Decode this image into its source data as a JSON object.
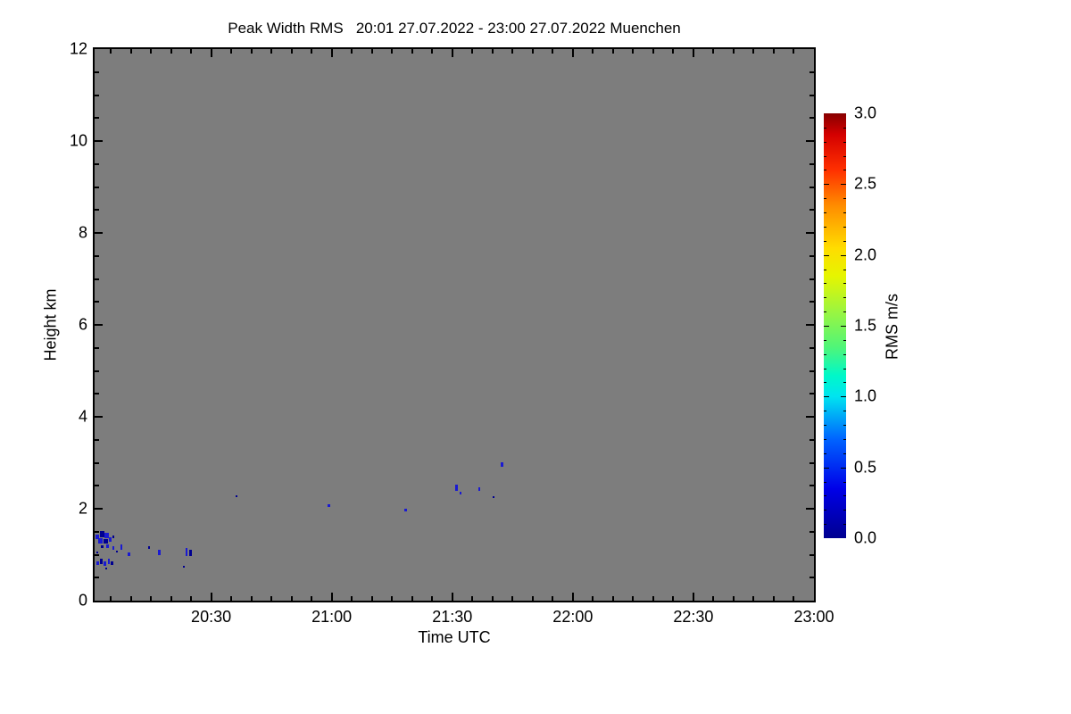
{
  "colors": {
    "plot_background": "#7d7d7d",
    "axis": "#000000",
    "figure_background": "#ffffff",
    "speck_low": "#000090",
    "speck_high": "#1a1ad2"
  },
  "chart_data": {
    "type": "heatmap",
    "title": "Peak Width RMS   20:01 27.07.2022 - 23:00 27.07.2022 Muenchen",
    "site": "Muenchen",
    "time_start": "20:01 27.07.2022",
    "time_end": "23:00 27.07.2022",
    "xlabel": "Time UTC",
    "ylabel": "Height km",
    "x_start_min": 1,
    "x_end_min": 180,
    "ylim": [
      0,
      12
    ],
    "x_axis": {
      "major_ticks": [
        {
          "t": 30,
          "label": "20:30"
        },
        {
          "t": 60,
          "label": "21:00"
        },
        {
          "t": 90,
          "label": "21:30"
        },
        {
          "t": 120,
          "label": "22:00"
        },
        {
          "t": 150,
          "label": "22:30"
        },
        {
          "t": 180,
          "label": "23:00"
        }
      ],
      "minor_step_min": 5,
      "major_every_min": 30
    },
    "y_axis": {
      "major_ticks": [
        {
          "v": 0,
          "label": "0"
        },
        {
          "v": 2,
          "label": "2"
        },
        {
          "v": 4,
          "label": "4"
        },
        {
          "v": 6,
          "label": "6"
        },
        {
          "v": 8,
          "label": "8"
        },
        {
          "v": 10,
          "label": "10"
        },
        {
          "v": 12,
          "label": "12"
        }
      ],
      "minor_step": 0.5,
      "major_every": 2
    },
    "colorbar": {
      "label": "RMS m/s",
      "min": 0.0,
      "max": 3.0,
      "tick_labels": [
        {
          "v": 0.0,
          "label": "0.0"
        },
        {
          "v": 0.5,
          "label": "0.5"
        },
        {
          "v": 1.0,
          "label": "1.0"
        },
        {
          "v": 1.5,
          "label": "1.5"
        },
        {
          "v": 2.0,
          "label": "2.0"
        },
        {
          "v": 2.5,
          "label": "2.5"
        },
        {
          "v": 3.0,
          "label": "3.0"
        }
      ],
      "minor_tick_step": 0.1,
      "major_tick_step": 0.5,
      "gradient_stops": [
        [
          0.0,
          "#000090"
        ],
        [
          0.35,
          "#0000e8"
        ],
        [
          0.7,
          "#0064ff"
        ],
        [
          1.0,
          "#00e4f0"
        ],
        [
          1.15,
          "#00f8c8"
        ],
        [
          1.35,
          "#50f578"
        ],
        [
          1.6,
          "#9bf540"
        ],
        [
          1.85,
          "#e6f500"
        ],
        [
          2.05,
          "#ffdc00"
        ],
        [
          2.35,
          "#ff8c00"
        ],
        [
          2.6,
          "#ff3000"
        ],
        [
          2.85,
          "#d40000"
        ],
        [
          3.0,
          "#870000"
        ]
      ]
    },
    "value_color_threshold": 0.2,
    "points_note": "t = minutes after 20:00 UTC, h = height km (top of spot), v = RMS m/s, dt/dh = spot extent",
    "points": [
      {
        "t": 1.2,
        "h": 1.44,
        "v": 0.35,
        "dt": 0.9,
        "dh": 0.1
      },
      {
        "t": 2.3,
        "h": 1.51,
        "v": 0.1,
        "dt": 1.1,
        "dh": 0.14
      },
      {
        "t": 3.4,
        "h": 1.48,
        "v": 0.35,
        "dt": 1.1,
        "dh": 0.12
      },
      {
        "t": 1.9,
        "h": 1.36,
        "v": 0.35,
        "dt": 1.1,
        "dh": 0.12
      },
      {
        "t": 3.2,
        "h": 1.34,
        "v": 0.1,
        "dt": 1.1,
        "dh": 0.1
      },
      {
        "t": 4.6,
        "h": 1.38,
        "v": 0.35,
        "dt": 0.67,
        "dh": 0.1
      },
      {
        "t": 2.6,
        "h": 1.2,
        "v": 0.1,
        "dt": 0.67,
        "dh": 0.06
      },
      {
        "t": 3.9,
        "h": 1.22,
        "v": 0.35,
        "dt": 0.67,
        "dh": 0.08
      },
      {
        "t": 5.4,
        "h": 1.42,
        "v": 0.1,
        "dt": 0.45,
        "dh": 0.06
      },
      {
        "t": 5.4,
        "h": 1.18,
        "v": 0.35,
        "dt": 0.45,
        "dh": 0.08
      },
      {
        "t": 7.4,
        "h": 1.22,
        "v": 0.35,
        "dt": 0.45,
        "dh": 0.12
      },
      {
        "t": 6.3,
        "h": 1.09,
        "v": 0.1,
        "dt": 0.45,
        "dh": 0.04
      },
      {
        "t": 9.2,
        "h": 1.05,
        "v": 0.35,
        "dt": 0.67,
        "dh": 0.08
      },
      {
        "t": 1.4,
        "h": 1.07,
        "v": 0.1,
        "dt": 0.45,
        "dh": 0.04
      },
      {
        "t": 1.4,
        "h": 0.85,
        "v": 0.35,
        "dt": 0.67,
        "dh": 0.08
      },
      {
        "t": 2.3,
        "h": 0.91,
        "v": 0.1,
        "dt": 0.67,
        "dh": 0.12
      },
      {
        "t": 3.2,
        "h": 0.85,
        "v": 0.35,
        "dt": 0.67,
        "dh": 0.1
      },
      {
        "t": 4.3,
        "h": 0.91,
        "v": 0.35,
        "dt": 0.45,
        "dh": 0.12
      },
      {
        "t": 5.0,
        "h": 0.85,
        "v": 0.1,
        "dt": 0.67,
        "dh": 0.08
      },
      {
        "t": 3.7,
        "h": 0.72,
        "v": 0.1,
        "dt": 0.45,
        "dh": 0.04
      },
      {
        "t": 14.3,
        "h": 1.18,
        "v": 0.1,
        "dt": 0.45,
        "dh": 0.06
      },
      {
        "t": 16.8,
        "h": 1.11,
        "v": 0.35,
        "dt": 0.67,
        "dh": 0.12
      },
      {
        "t": 23.0,
        "h": 0.76,
        "v": 0.1,
        "dt": 0.45,
        "dh": 0.04
      },
      {
        "t": 23.7,
        "h": 1.15,
        "v": 0.35,
        "dt": 0.45,
        "dh": 0.17
      },
      {
        "t": 24.5,
        "h": 1.11,
        "v": 0.1,
        "dt": 0.67,
        "dh": 0.14
      },
      {
        "t": 36.1,
        "h": 2.29,
        "v": 0.1,
        "dt": 0.45,
        "dh": 0.04
      },
      {
        "t": 59.0,
        "h": 2.1,
        "v": 0.35,
        "dt": 0.67,
        "dh": 0.06
      },
      {
        "t": 78.1,
        "h": 2.0,
        "v": 0.35,
        "dt": 0.67,
        "dh": 0.06
      },
      {
        "t": 90.7,
        "h": 2.52,
        "v": 0.35,
        "dt": 0.67,
        "dh": 0.14
      },
      {
        "t": 91.8,
        "h": 2.37,
        "v": 0.35,
        "dt": 0.45,
        "dh": 0.06
      },
      {
        "t": 96.5,
        "h": 2.47,
        "v": 0.35,
        "dt": 0.45,
        "dh": 0.08
      },
      {
        "t": 100.0,
        "h": 2.27,
        "v": 0.1,
        "dt": 0.45,
        "dh": 0.04
      },
      {
        "t": 102.1,
        "h": 3.01,
        "v": 0.35,
        "dt": 0.67,
        "dh": 0.1
      }
    ]
  }
}
